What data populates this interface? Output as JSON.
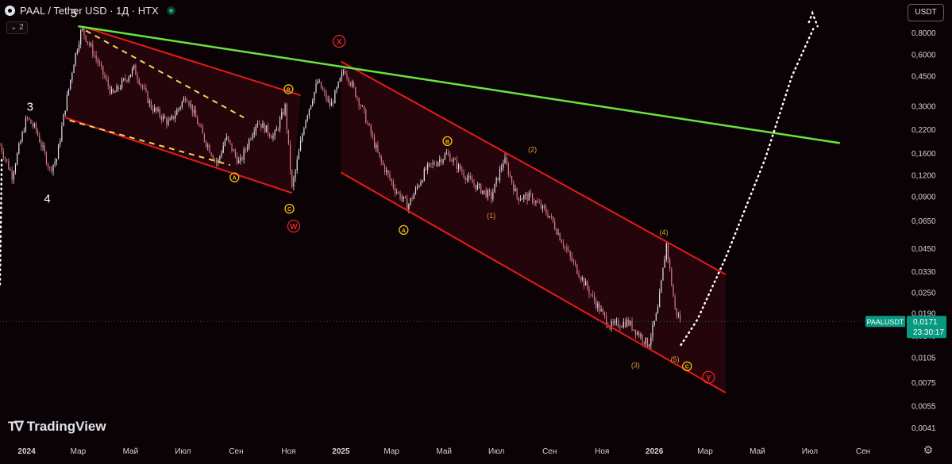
{
  "header": {
    "title": "PAAL / Tether USD · 1Д · HTX",
    "collapse_label": "⌄ 2"
  },
  "currency_button": "USDT",
  "logo_text": "TradingView",
  "colors": {
    "background": "#0b0205",
    "candle_up": "#e0e3eb",
    "candle_down": "#d97a86",
    "channel_line": "#e81a1a",
    "trendline": "#66e63f",
    "dashed_line": "#f2d65a",
    "price_tag": "#089981",
    "label_yellow": "#f5c518",
    "label_red": "#e0262b",
    "label_orange": "#e6a03a"
  },
  "chart_data": {
    "type": "candlestick",
    "symbol": "PAALUSDT",
    "timeframe": "1Д",
    "exchange": "HTX",
    "y_scale": "log",
    "ylim": [
      0.0035,
      1.25
    ],
    "y_ticks": [
      "1,1000",
      "0,8000",
      "0,6000",
      "0,4500",
      "0,3000",
      "0,2200",
      "0,1600",
      "0,1200",
      "0,0900",
      "0,0650",
      "0,0450",
      "0,0330",
      "0,0250",
      "0,0190",
      "0,0140",
      "0,0105",
      "0,0075",
      "0,0055",
      "0,0041"
    ],
    "y_tick_values": [
      1.1,
      0.8,
      0.6,
      0.45,
      0.3,
      0.22,
      0.16,
      0.12,
      0.09,
      0.065,
      0.045,
      0.033,
      0.025,
      0.019,
      0.014,
      0.0105,
      0.0075,
      0.0055,
      0.0041
    ],
    "x_range": [
      "2023-12-01",
      "2026-10-20"
    ],
    "x_ticks": [
      {
        "label": "2024",
        "date": "2024-01-01",
        "bold": true
      },
      {
        "label": "Мар",
        "date": "2024-03-01"
      },
      {
        "label": "Май",
        "date": "2024-05-01"
      },
      {
        "label": "Июл",
        "date": "2024-07-01"
      },
      {
        "label": "Сен",
        "date": "2024-09-01"
      },
      {
        "label": "Ноя",
        "date": "2024-11-01"
      },
      {
        "label": "2025",
        "date": "2025-01-01",
        "bold": true
      },
      {
        "label": "Мар",
        "date": "2025-03-01"
      },
      {
        "label": "Май",
        "date": "2025-05-01"
      },
      {
        "label": "Июл",
        "date": "2025-07-01"
      },
      {
        "label": "Сен",
        "date": "2025-09-01"
      },
      {
        "label": "Ноя",
        "date": "2025-11-01"
      },
      {
        "label": "2026",
        "date": "2026-01-01",
        "bold": true
      },
      {
        "label": "Мар",
        "date": "2026-03-01"
      },
      {
        "label": "Май",
        "date": "2026-05-01"
      },
      {
        "label": "Июл",
        "date": "2026-07-01"
      },
      {
        "label": "Сен",
        "date": "2026-09-01"
      }
    ],
    "last_price": {
      "label": "PAALUSDT",
      "value": "0,0171",
      "countdown": "23:30:17",
      "y": 0.0171
    },
    "price_path": [
      [
        "2023-12-01",
        0.18
      ],
      [
        "2023-12-15",
        0.12
      ],
      [
        "2024-01-01",
        0.26
      ],
      [
        "2024-01-12",
        0.22
      ],
      [
        "2024-01-28",
        0.13
      ],
      [
        "2024-02-05",
        0.15
      ],
      [
        "2024-02-15",
        0.3
      ],
      [
        "2024-02-25",
        0.55
      ],
      [
        "2024-03-05",
        0.85
      ],
      [
        "2024-03-20",
        0.6
      ],
      [
        "2024-04-10",
        0.35
      ],
      [
        "2024-05-05",
        0.5
      ],
      [
        "2024-05-25",
        0.3
      ],
      [
        "2024-06-15",
        0.24
      ],
      [
        "2024-07-05",
        0.35
      ],
      [
        "2024-07-25",
        0.2
      ],
      [
        "2024-08-10",
        0.14
      ],
      [
        "2024-08-20",
        0.2
      ],
      [
        "2024-09-05",
        0.14
      ],
      [
        "2024-09-25",
        0.25
      ],
      [
        "2024-10-15",
        0.2
      ],
      [
        "2024-10-28",
        0.3
      ],
      [
        "2024-11-05",
        0.1
      ],
      [
        "2024-11-20",
        0.25
      ],
      [
        "2024-12-05",
        0.42
      ],
      [
        "2024-12-20",
        0.3
      ],
      [
        "2025-01-05",
        0.5
      ],
      [
        "2025-01-25",
        0.3
      ],
      [
        "2025-02-15",
        0.15
      ],
      [
        "2025-03-05",
        0.1
      ],
      [
        "2025-03-20",
        0.08
      ],
      [
        "2025-04-10",
        0.13
      ],
      [
        "2025-05-05",
        0.16
      ],
      [
        "2025-06-01",
        0.11
      ],
      [
        "2025-06-25",
        0.09
      ],
      [
        "2025-07-10",
        0.15
      ],
      [
        "2025-07-25",
        0.09
      ],
      [
        "2025-08-10",
        0.09
      ],
      [
        "2025-09-01",
        0.07
      ],
      [
        "2025-09-25",
        0.04
      ],
      [
        "2025-10-20",
        0.024
      ],
      [
        "2025-11-10",
        0.016
      ],
      [
        "2025-12-01",
        0.017
      ],
      [
        "2025-12-25",
        0.0125
      ],
      [
        "2026-01-05",
        0.02
      ],
      [
        "2026-01-15",
        0.048
      ],
      [
        "2026-01-25",
        0.02
      ],
      [
        "2026-02-01",
        0.0171
      ]
    ],
    "projection": [
      [
        "2026-02-01",
        0.0125
      ],
      [
        "2026-02-20",
        0.0175
      ],
      [
        "2026-03-25",
        0.04
      ],
      [
        "2026-05-10",
        0.15
      ],
      [
        "2026-06-10",
        0.45
      ],
      [
        "2026-07-05",
        0.85
      ]
    ],
    "lead_dotted": [
      [
        "2023-12-01",
        0.028
      ],
      [
        "2023-12-03",
        0.15
      ]
    ],
    "projection_arrow": [
      [
        "2026-06-30",
        0.93
      ],
      [
        "2026-07-04",
        1.05
      ],
      [
        "2026-07-10",
        0.88
      ]
    ],
    "trendline": [
      [
        "2024-03-01",
        0.88
      ],
      [
        "2026-08-05",
        0.185
      ]
    ],
    "channels": [
      {
        "upper": [
          [
            "2024-03-05",
            0.88
          ],
          [
            "2024-11-15",
            0.35
          ]
        ],
        "lower": [
          [
            "2024-02-15",
            0.26
          ],
          [
            "2024-11-05",
            0.095
          ]
        ]
      },
      {
        "upper": [
          [
            "2025-01-01",
            0.55
          ],
          [
            "2026-03-25",
            0.032
          ]
        ],
        "lower": [
          [
            "2025-01-01",
            0.125
          ],
          [
            "2026-03-25",
            0.0066
          ]
        ]
      }
    ],
    "dashed_lines": [
      [
        [
          "2024-03-10",
          0.83
        ],
        [
          "2024-09-10",
          0.26
        ]
      ],
      [
        [
          "2024-02-20",
          0.25
        ],
        [
          "2024-08-25",
          0.138
        ]
      ]
    ],
    "wave_labels": [
      {
        "text": "3",
        "x": "2024-01-05",
        "y": 0.3,
        "style": "plain"
      },
      {
        "text": "4",
        "x": "2024-01-25",
        "y": 0.088,
        "style": "plain"
      },
      {
        "text": "5",
        "x": "2024-02-25",
        "y": 1.05,
        "style": "plain"
      },
      {
        "text": "A",
        "x": "2024-08-30",
        "y": 0.117,
        "style": "circle-yellow"
      },
      {
        "text": "B",
        "x": "2024-11-01",
        "y": 0.38,
        "style": "circle-yellow"
      },
      {
        "text": "C",
        "x": "2024-11-02",
        "y": 0.077,
        "style": "circle-yellow"
      },
      {
        "text": "W",
        "x": "2024-11-07",
        "y": 0.061,
        "style": "circle-red"
      },
      {
        "text": "X",
        "x": "2024-12-30",
        "y": 0.72,
        "style": "circle-red"
      },
      {
        "text": "A",
        "x": "2025-03-15",
        "y": 0.058,
        "style": "circle-yellow"
      },
      {
        "text": "B",
        "x": "2025-05-05",
        "y": 0.19,
        "style": "circle-yellow"
      },
      {
        "text": "(1)",
        "x": "2025-06-25",
        "y": 0.07,
        "style": "paren"
      },
      {
        "text": "(2)",
        "x": "2025-08-12",
        "y": 0.17,
        "style": "paren"
      },
      {
        "text": "(3)",
        "x": "2025-12-10",
        "y": 0.0095,
        "style": "paren"
      },
      {
        "text": "(4)",
        "x": "2026-01-12",
        "y": 0.056,
        "style": "paren"
      },
      {
        "text": "(5)",
        "x": "2026-01-25",
        "y": 0.0103,
        "style": "paren"
      },
      {
        "text": "C",
        "x": "2026-02-08",
        "y": 0.0094,
        "style": "circle-yellow"
      },
      {
        "text": "Y",
        "x": "2026-03-05",
        "y": 0.0081,
        "style": "circle-red"
      }
    ]
  }
}
